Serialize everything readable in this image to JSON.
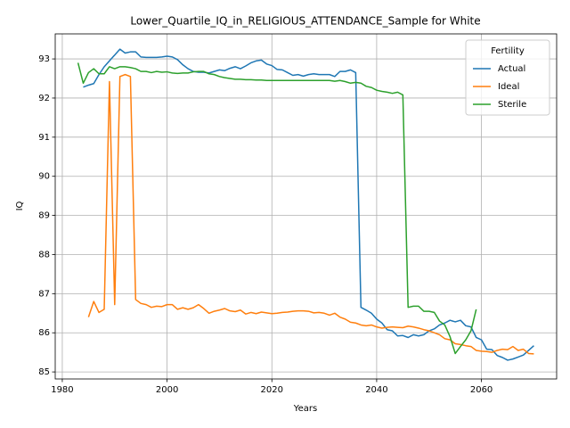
{
  "chart_data": {
    "type": "line",
    "title": "Lower_Quartile_IQ_in_RELIGIOUS_ATTENDANCE_Sample for White",
    "xlabel": "Years",
    "ylabel": "IQ",
    "x": [
      1983,
      1984,
      1985,
      1986,
      1987,
      1988,
      1989,
      1990,
      1991,
      1992,
      1993,
      1994,
      1995,
      1996,
      1997,
      1998,
      1999,
      2000,
      2001,
      2002,
      2003,
      2004,
      2005,
      2006,
      2007,
      2008,
      2009,
      2010,
      2011,
      2012,
      2013,
      2014,
      2015,
      2016,
      2017,
      2018,
      2019,
      2020,
      2021,
      2022,
      2023,
      2024,
      2025,
      2026,
      2027,
      2028,
      2029,
      2030,
      2031,
      2032,
      2033,
      2034,
      2035,
      2036,
      2037,
      2038,
      2039,
      2040,
      2041,
      2042,
      2043,
      2044,
      2045,
      2046,
      2047,
      2048,
      2049,
      2050,
      2051,
      2052,
      2053,
      2054,
      2055,
      2056,
      2057,
      2058,
      2059,
      2060,
      2061,
      2062,
      2063,
      2064,
      2065,
      2066,
      2067,
      2068,
      2069,
      2070
    ],
    "series": [
      {
        "name": "Actual",
        "color": "#1f77b4",
        "values": [
          null,
          92.28,
          92.33,
          92.37,
          92.6,
          92.8,
          92.95,
          93.1,
          93.25,
          93.15,
          93.18,
          93.18,
          93.05,
          93.04,
          93.04,
          93.04,
          93.05,
          93.07,
          93.05,
          92.98,
          92.85,
          92.75,
          92.68,
          92.66,
          92.66,
          92.64,
          92.68,
          92.72,
          92.7,
          92.76,
          92.8,
          92.75,
          92.82,
          92.9,
          92.95,
          92.97,
          92.87,
          92.83,
          92.73,
          92.72,
          92.65,
          92.58,
          92.6,
          92.56,
          92.6,
          92.62,
          92.6,
          92.6,
          92.6,
          92.55,
          92.68,
          92.68,
          92.72,
          92.65,
          86.65,
          86.58,
          86.5,
          86.35,
          86.25,
          86.08,
          86.05,
          85.92,
          85.93,
          85.88,
          85.95,
          85.92,
          85.95,
          86.05,
          86.1,
          86.2,
          86.25,
          86.32,
          86.28,
          86.32,
          86.18,
          86.15,
          85.88,
          85.82,
          85.58,
          85.57,
          85.42,
          85.37,
          85.3,
          85.33,
          85.38,
          85.43,
          85.55,
          85.67
        ]
      },
      {
        "name": "Ideal",
        "color": "#ff7f0e",
        "values": [
          null,
          null,
          86.4,
          86.8,
          86.52,
          86.6,
          92.42,
          86.72,
          92.55,
          92.6,
          92.55,
          86.85,
          86.75,
          86.72,
          86.65,
          86.68,
          86.67,
          86.72,
          86.72,
          86.6,
          86.64,
          86.6,
          86.64,
          86.72,
          86.62,
          86.5,
          86.55,
          86.58,
          86.62,
          86.56,
          86.54,
          86.58,
          86.48,
          86.52,
          86.49,
          86.53,
          86.51,
          86.49,
          86.5,
          86.52,
          86.53,
          86.55,
          86.56,
          86.56,
          86.55,
          86.51,
          86.52,
          86.5,
          86.45,
          86.5,
          86.4,
          86.35,
          86.27,
          86.25,
          86.2,
          86.18,
          86.2,
          86.15,
          86.12,
          86.14,
          86.15,
          86.14,
          86.13,
          86.17,
          86.15,
          86.12,
          86.08,
          86.05,
          86.0,
          85.95,
          85.85,
          85.82,
          85.72,
          85.7,
          85.67,
          85.65,
          85.55,
          85.53,
          85.52,
          85.5,
          85.55,
          85.58,
          85.57,
          85.65,
          85.55,
          85.58,
          85.47,
          85.46
        ]
      },
      {
        "name": "Sterile",
        "color": "#2ca02c",
        "values": [
          92.9,
          92.38,
          92.65,
          92.75,
          92.62,
          92.62,
          92.8,
          92.75,
          92.8,
          92.8,
          92.78,
          92.75,
          92.68,
          92.68,
          92.65,
          92.68,
          92.66,
          92.67,
          92.64,
          92.63,
          92.64,
          92.64,
          92.67,
          92.68,
          92.68,
          92.62,
          92.6,
          92.55,
          92.52,
          92.5,
          92.48,
          92.48,
          92.47,
          92.47,
          92.46,
          92.46,
          92.45,
          92.45,
          92.45,
          92.45,
          92.45,
          92.45,
          92.45,
          92.45,
          92.45,
          92.45,
          92.45,
          92.45,
          92.45,
          92.43,
          92.45,
          92.42,
          92.38,
          92.4,
          92.38,
          92.3,
          92.27,
          92.2,
          92.17,
          92.15,
          92.12,
          92.15,
          92.08,
          86.65,
          86.68,
          86.68,
          86.55,
          86.55,
          86.52,
          86.3,
          86.2,
          85.9,
          85.47,
          85.65,
          85.82,
          86.05,
          86.6,
          null,
          null,
          null,
          null,
          null,
          null,
          null,
          null,
          null,
          null,
          null
        ]
      }
    ],
    "xlim": [
      1978.65,
      2074.35
    ],
    "xticks": [
      1980,
      2000,
      2020,
      2040,
      2060
    ],
    "ylim": [
      84.82,
      93.64
    ],
    "yticks": [
      85,
      86,
      87,
      88,
      89,
      90,
      91,
      92,
      93
    ],
    "grid": true,
    "legend_title": "Fertility",
    "legend": "upper right"
  }
}
